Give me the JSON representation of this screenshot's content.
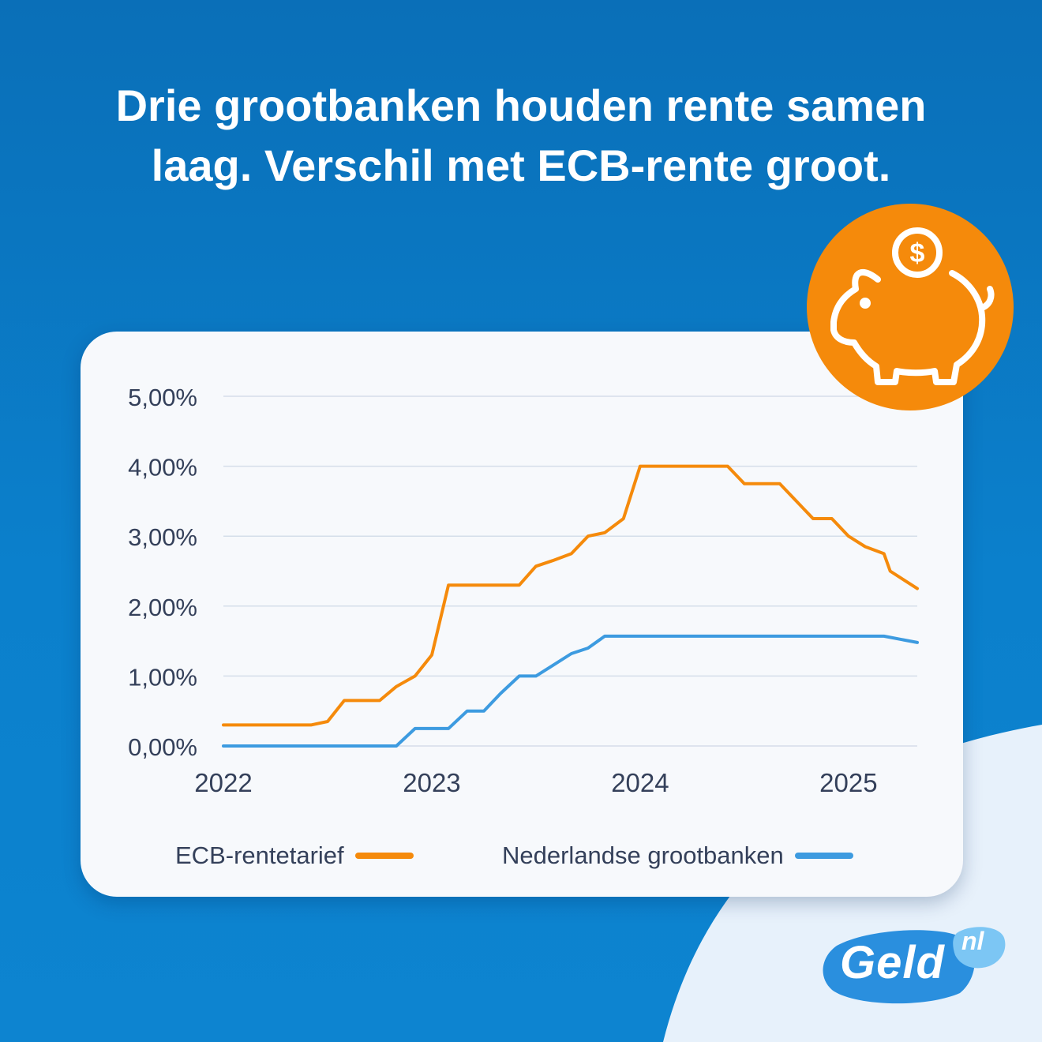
{
  "headline": {
    "line1": "Drie grootbanken houden rente samen",
    "line2": "laag. Verschil met ECB-rente groot."
  },
  "colors": {
    "background": "#0b7cc7",
    "card": "#f7f9fc",
    "ecb": "#f58a0b",
    "banks": "#3d9be0",
    "badge": "#f58a0b",
    "logo": "#2a8fde"
  },
  "icons": {
    "badge": "piggy-bank-icon",
    "coin": "dollar-coin-icon"
  },
  "logo": {
    "main": "Geld",
    "suffix": "nl"
  },
  "chart_data": {
    "type": "line",
    "title": "",
    "xlabel": "",
    "ylabel": "",
    "xlim": [
      2022.0,
      2025.33
    ],
    "ylim": [
      0,
      5
    ],
    "x_ticks": [
      "2022",
      "2023",
      "2024",
      "2025"
    ],
    "y_ticks": [
      "0,00%",
      "1,00%",
      "2,00%",
      "3,00%",
      "4,00%",
      "5,00%"
    ],
    "grid": true,
    "legend_position": "bottom",
    "series": [
      {
        "name": "ECB-rentetarief",
        "color": "#f58a0b",
        "points": [
          [
            2022.0,
            0.3
          ],
          [
            2022.42,
            0.3
          ],
          [
            2022.5,
            0.35
          ],
          [
            2022.58,
            0.65
          ],
          [
            2022.75,
            0.65
          ],
          [
            2022.83,
            0.85
          ],
          [
            2022.92,
            1.0
          ],
          [
            2023.0,
            1.3
          ],
          [
            2023.08,
            2.3
          ],
          [
            2023.42,
            2.3
          ],
          [
            2023.5,
            2.57
          ],
          [
            2023.58,
            2.65
          ],
          [
            2023.67,
            2.75
          ],
          [
            2023.75,
            3.0
          ],
          [
            2023.83,
            3.05
          ],
          [
            2023.92,
            3.25
          ],
          [
            2024.0,
            4.0
          ],
          [
            2024.42,
            4.0
          ],
          [
            2024.5,
            3.75
          ],
          [
            2024.67,
            3.75
          ],
          [
            2024.75,
            3.5
          ],
          [
            2024.83,
            3.25
          ],
          [
            2024.92,
            3.25
          ],
          [
            2025.0,
            3.0
          ],
          [
            2025.08,
            2.85
          ],
          [
            2025.17,
            2.75
          ],
          [
            2025.2,
            2.5
          ],
          [
            2025.33,
            2.25
          ]
        ]
      },
      {
        "name": "Nederlandse grootbanken",
        "color": "#3d9be0",
        "points": [
          [
            2022.0,
            0.0
          ],
          [
            2022.83,
            0.0
          ],
          [
            2022.92,
            0.25
          ],
          [
            2023.08,
            0.25
          ],
          [
            2023.17,
            0.5
          ],
          [
            2023.25,
            0.5
          ],
          [
            2023.33,
            0.75
          ],
          [
            2023.42,
            1.0
          ],
          [
            2023.5,
            1.0
          ],
          [
            2023.58,
            1.15
          ],
          [
            2023.67,
            1.32
          ],
          [
            2023.75,
            1.4
          ],
          [
            2023.83,
            1.57
          ],
          [
            2025.17,
            1.57
          ],
          [
            2025.33,
            1.48
          ]
        ]
      }
    ]
  }
}
